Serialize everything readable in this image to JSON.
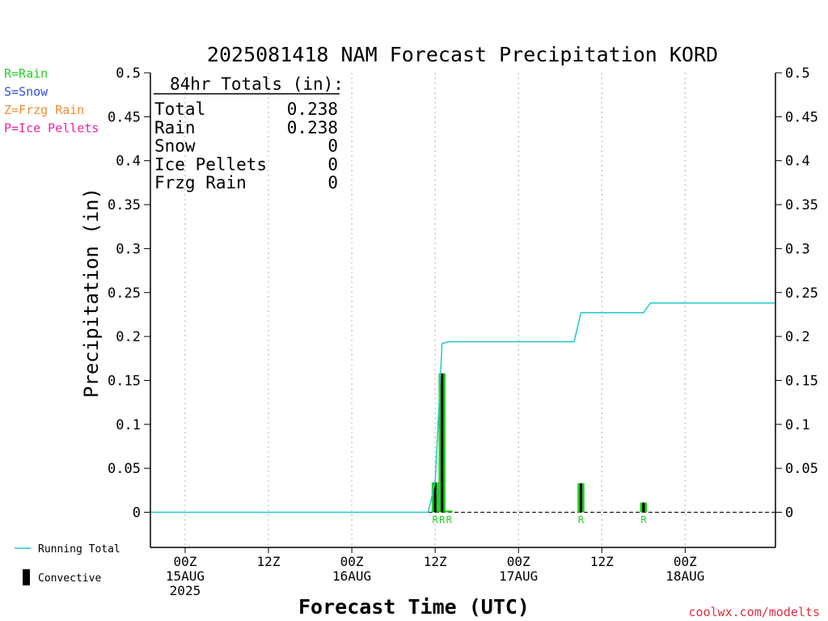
{
  "chart_data": {
    "type": "bar",
    "title": "2025081418 NAM Forecast Precipitation KORD",
    "xlabel": "Forecast Time (UTC)",
    "ylabel": "Precipitation (in)",
    "ylim": [
      -0.04,
      0.5
    ],
    "yticks": [
      0,
      0.05,
      0.1,
      0.15,
      0.2,
      0.25,
      0.3,
      0.35,
      0.4,
      0.45,
      0.5
    ],
    "ytick_labels": [
      "0",
      "0.05",
      "0.1",
      "0.15",
      "0.2",
      "0.25",
      "0.3",
      "0.35",
      "0.4",
      "0.45",
      "0.5"
    ],
    "xlim_hours": [
      -5,
      85
    ],
    "grid": "vertical dotted",
    "x_ticks": [
      {
        "hour": 0,
        "lines": [
          "00Z",
          "15AUG",
          "2025"
        ]
      },
      {
        "hour": 12,
        "lines": [
          "12Z"
        ]
      },
      {
        "hour": 24,
        "lines": [
          "00Z",
          "16AUG"
        ]
      },
      {
        "hour": 36,
        "lines": [
          "12Z"
        ]
      },
      {
        "hour": 48,
        "lines": [
          "00Z",
          "17AUG"
        ]
      },
      {
        "hour": 60,
        "lines": [
          "12Z"
        ]
      },
      {
        "hour": 72,
        "lines": [
          "00Z",
          "18AUG"
        ]
      }
    ],
    "series": [
      {
        "name": "Running Total",
        "color": "#20c8c8",
        "kind": "line",
        "x_hours": [
          -5,
          35,
          36,
          37,
          38,
          56,
          57,
          66,
          67,
          85
        ],
        "values": [
          0,
          0,
          0.034,
          0.192,
          0.194,
          0.194,
          0.227,
          0.227,
          0.238,
          0.238
        ]
      },
      {
        "name": "Convective",
        "color": "#000000",
        "kind": "bar",
        "x_hours": [
          36,
          37,
          57,
          66
        ],
        "values": [
          0.034,
          0.158,
          0.033,
          0.011
        ]
      },
      {
        "name": "Rain",
        "color": "#20d020",
        "kind": "bar",
        "x_hours": [
          36,
          37,
          38,
          57,
          66
        ],
        "values": [
          0.034,
          0.158,
          0.002,
          0.033,
          0.011
        ]
      }
    ],
    "ptype_markers": [
      {
        "hour": 36,
        "label": "R"
      },
      {
        "hour": 37,
        "label": "R"
      },
      {
        "hour": 38,
        "label": "R"
      },
      {
        "hour": 57,
        "label": "R"
      },
      {
        "hour": 66,
        "label": "R"
      }
    ],
    "ptype_legend": [
      {
        "text": "R=Rain",
        "color": "#20d020"
      },
      {
        "text": "S=Snow",
        "color": "#3050e0"
      },
      {
        "text": "Z=Frzg Rain",
        "color": "#f08c30"
      },
      {
        "text": "P=Ice Pellets",
        "color": "#f020a0"
      }
    ],
    "totals": {
      "header": "84hr Totals (in):",
      "rows": [
        {
          "label": "Total",
          "value": "0.238"
        },
        {
          "label": "Rain",
          "value": "0.238"
        },
        {
          "label": "Snow",
          "value": "0"
        },
        {
          "label": "Ice Pellets",
          "value": "0"
        },
        {
          "label": "Frzg Rain",
          "value": "0"
        }
      ]
    },
    "legend": [
      {
        "label": "Running Total",
        "color": "#20c8c8",
        "kind": "line"
      },
      {
        "label": "Convective",
        "color": "#000000",
        "kind": "bar"
      }
    ],
    "credit": "coolwx.com/modelts"
  }
}
